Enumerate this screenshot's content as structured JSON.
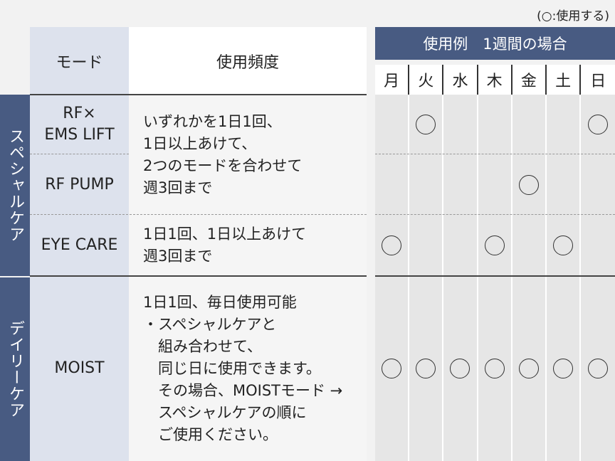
{
  "legend": "(○:使用する)",
  "header": {
    "mode": "モード",
    "frequency": "使用頻度",
    "example": "使用例　1週間の場合",
    "days": [
      "月",
      "火",
      "水",
      "木",
      "金",
      "土",
      "日"
    ]
  },
  "categories": [
    {
      "label": "スペシャルケア"
    },
    {
      "label": "デイリーケア"
    }
  ],
  "rows": [
    {
      "mode": "RF×\nEMS LIFT",
      "usage": [
        false,
        true,
        false,
        false,
        false,
        false,
        true
      ]
    },
    {
      "mode": "RF PUMP",
      "usage": [
        false,
        false,
        false,
        false,
        true,
        false,
        false
      ]
    },
    {
      "mode": "EYE CARE",
      "frequency": [
        "1日1回、1日以上あけて",
        "週3回まで"
      ],
      "usage": [
        true,
        false,
        false,
        true,
        false,
        true,
        false
      ]
    },
    {
      "mode": "MOIST",
      "frequency": [
        "1日1回、毎日使用可能",
        "・スペシャルケアと",
        "　組み合わせて、",
        "　同じ日に使用できます。",
        "　その場合、MOISTモード →",
        "　スペシャルケアの順に",
        "　ご使用ください。"
      ],
      "usage": [
        true,
        true,
        true,
        true,
        true,
        true,
        true
      ]
    }
  ],
  "shared_frequency": [
    "いずれかを1日1回、",
    "1日以上あけて、",
    "2つのモードを合わせて",
    "週3回まで"
  ],
  "colors": {
    "navy": "#485b82",
    "mode_bg": "#dde2ed",
    "cell_bg": "#e6e6e6"
  }
}
